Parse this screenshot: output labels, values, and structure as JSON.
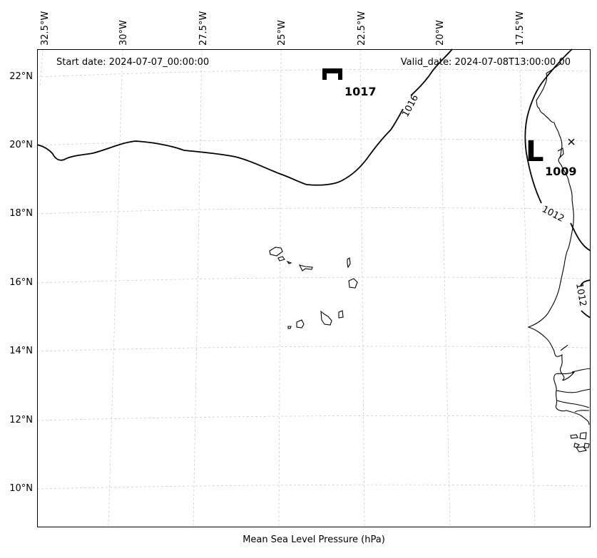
{
  "header": {
    "start_date": "Start date: 2024-07-07_00:00:00",
    "valid_date": "Valid_date: 2024-07-08T13:00:00.00"
  },
  "bottom_label": "Mean Sea Level Pressure (hPa)",
  "longitude_labels": [
    "32.5°W",
    "30°W",
    "27.5°W",
    "25°W",
    "22.5°W",
    "20°W",
    "17.5°W"
  ],
  "latitude_labels": [
    "22°N",
    "20°N",
    "18°N",
    "16°N",
    "14°N",
    "12°N",
    "10°N"
  ],
  "pressure_systems": [
    {
      "kind": "high",
      "value": "1017"
    },
    {
      "kind": "low",
      "value": "1009",
      "letter": "L"
    }
  ],
  "isobar_labels": [
    "1016",
    "1012",
    "1012"
  ],
  "colors": {
    "line": "#000000",
    "grid": "#cccccc",
    "background": "#ffffff"
  }
}
